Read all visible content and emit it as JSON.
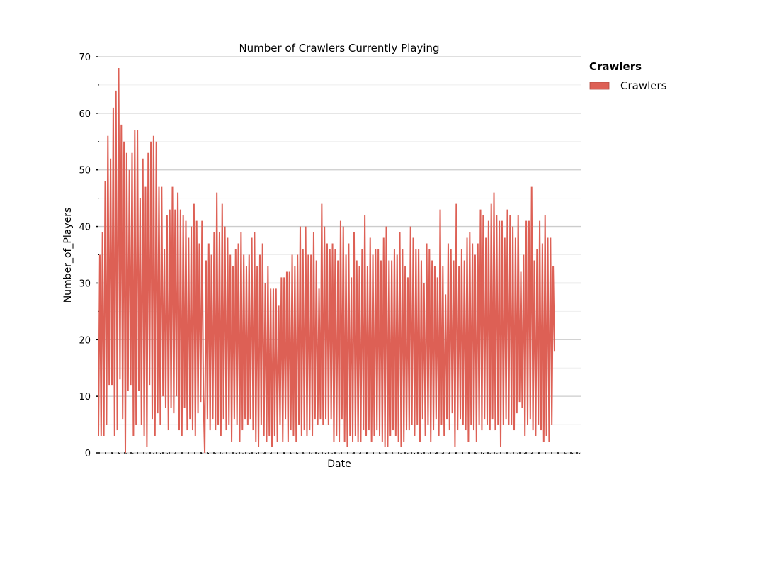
{
  "chart_data": {
    "type": "line",
    "title": "Number of Crawlers Currently Playing",
    "xlabel": "Date",
    "ylabel": "Number_of_Players",
    "ylim": [
      0,
      70
    ],
    "yticks": [
      0,
      10,
      20,
      30,
      40,
      50,
      60,
      70
    ],
    "grid": true,
    "legend": {
      "title": "Crawlers",
      "placement": "right, outside plot"
    },
    "colors": {
      "series": "#dd6055",
      "grid_major": "#cccccc",
      "grid_minor": "#eeeeee"
    },
    "series": [
      {
        "name": "Crawlers",
        "values": [
          3,
          35,
          3,
          39,
          3,
          48,
          5,
          56,
          12,
          52,
          12,
          61,
          3,
          64,
          4,
          68,
          13,
          58,
          6,
          55,
          0,
          53,
          11,
          50,
          12,
          53,
          3,
          57,
          5,
          57,
          11,
          45,
          5,
          52,
          3,
          47,
          1,
          53,
          12,
          55,
          6,
          56,
          3,
          55,
          7,
          47,
          5,
          47,
          10,
          36,
          8,
          42,
          4,
          43,
          8,
          47,
          7,
          43,
          10,
          46,
          4,
          43,
          3,
          42,
          8,
          41,
          4,
          38,
          6,
          40,
          4,
          44,
          3,
          41,
          7,
          37,
          9,
          41,
          10,
          0,
          34,
          6,
          37,
          4,
          35,
          6,
          39,
          4,
          46,
          5,
          39,
          3,
          44,
          6,
          40,
          4,
          38,
          5,
          35,
          2,
          33,
          6,
          36,
          5,
          37,
          2,
          39,
          4,
          35,
          6,
          33,
          5,
          35,
          6,
          38,
          4,
          39,
          2,
          33,
          1,
          35,
          5,
          37,
          3,
          30,
          2,
          33,
          3,
          29,
          1,
          29,
          3,
          29,
          2,
          26,
          5,
          31,
          2,
          31,
          6,
          32,
          2,
          32,
          4,
          35,
          3,
          33,
          2,
          35,
          5,
          40,
          3,
          36,
          4,
          40,
          3,
          35,
          4,
          35,
          3,
          39,
          6,
          34,
          5,
          29,
          6,
          44,
          5,
          40,
          6,
          37,
          5,
          36,
          6,
          37,
          2,
          36,
          3,
          34,
          2,
          41,
          6,
          40,
          2,
          35,
          1,
          37,
          3,
          31,
          2,
          39,
          3,
          34,
          2,
          33,
          2,
          36,
          4,
          42,
          3,
          33,
          4,
          38,
          2,
          35,
          3,
          36,
          4,
          36,
          3,
          34,
          2,
          38,
          1,
          40,
          1,
          34,
          3,
          34,
          4,
          36,
          3,
          35,
          2,
          39,
          1,
          36,
          2,
          33,
          4,
          31,
          4,
          40,
          5,
          38,
          3,
          36,
          5,
          36,
          2,
          34,
          6,
          30,
          3,
          37,
          5,
          36,
          2,
          34,
          4,
          33,
          6,
          31,
          3,
          43,
          5,
          33,
          3,
          28,
          6,
          37,
          4,
          36,
          7,
          34,
          1,
          44,
          4,
          33,
          6,
          36,
          5,
          34,
          4,
          38,
          2,
          39,
          5,
          37,
          4,
          35,
          2,
          37,
          5,
          43,
          4,
          42,
          6,
          38,
          5,
          41,
          4,
          44,
          6,
          46,
          4,
          42,
          5,
          41,
          1,
          41,
          5,
          38,
          6,
          43,
          5,
          42,
          5,
          40,
          4,
          38,
          7,
          42,
          9,
          32,
          8,
          35,
          3,
          41,
          5,
          41,
          6,
          47,
          4,
          34,
          3,
          36,
          5,
          41,
          4,
          37,
          2,
          42,
          3,
          38,
          2,
          38,
          5,
          33,
          18
        ]
      }
    ]
  }
}
